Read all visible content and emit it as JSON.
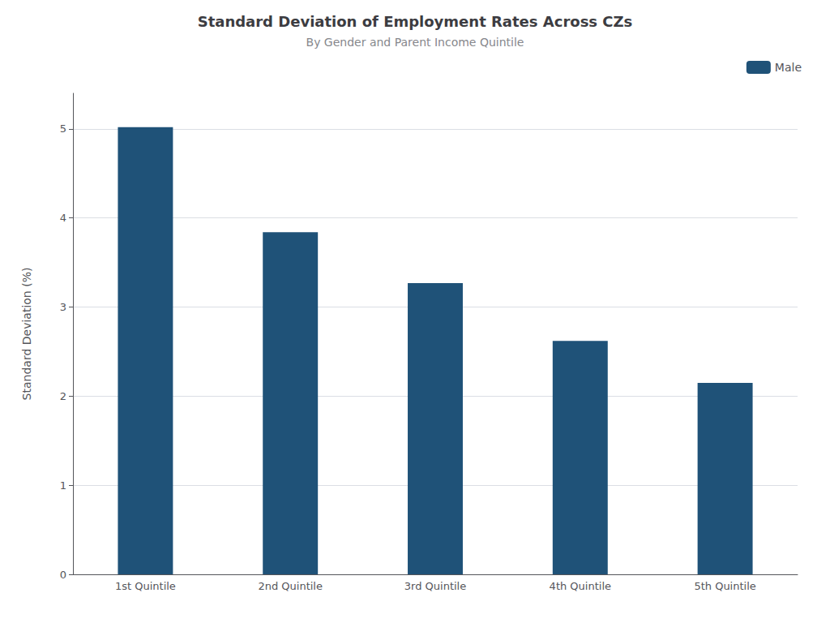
{
  "chart_data": {
    "type": "bar",
    "title": "Standard Deviation of Employment Rates Across CZs",
    "subtitle": "By Gender and Parent Income Quintile",
    "ylabel": "Standard Deviation (%)",
    "categories": [
      "1st Quintile",
      "2nd Quintile",
      "3rd Quintile",
      "4th Quintile",
      "5th Quintile"
    ],
    "series": [
      {
        "name": "Male",
        "color": "#1f5278",
        "values": [
          5.02,
          3.84,
          3.27,
          2.62,
          2.15
        ]
      }
    ],
    "ylim": [
      0,
      5.4
    ],
    "yticks": [
      0,
      1,
      2,
      3,
      4,
      5
    ],
    "grid": true,
    "legend": "upper right"
  }
}
